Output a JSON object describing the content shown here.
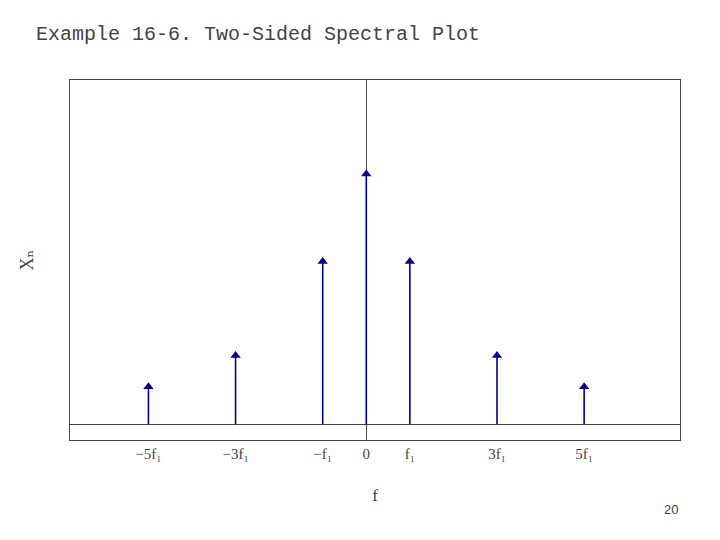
{
  "chart_data": {
    "type": "stem",
    "title": "Example 16-6. Two-Sided Spectral Plot",
    "x": [
      -5,
      -3,
      -1,
      0,
      1,
      3,
      5
    ],
    "values": [
      0.12,
      0.22,
      0.52,
      0.8,
      0.52,
      0.22,
      0.12
    ],
    "color": "#00008B",
    "marker": "triangle-up",
    "xlim": [
      -6.8,
      7.2
    ],
    "ylim": [
      -0.05,
      1.1
    ],
    "xticks": [
      {
        "value": -5,
        "label": "−5f₁"
      },
      {
        "value": -3,
        "label": "−3f₁"
      },
      {
        "value": -1,
        "label": "−f₁"
      },
      0,
      {
        "value": 1,
        "label": "f₁"
      },
      {
        "value": 3,
        "label": "3f₁"
      },
      {
        "value": 5,
        "label": "5f₁"
      }
    ],
    "yticks": [],
    "tick_labels": "x",
    "grid": false,
    "xlabel": "f",
    "ylabel": "Xₙ",
    "annotations": [
      "20"
    ]
  }
}
